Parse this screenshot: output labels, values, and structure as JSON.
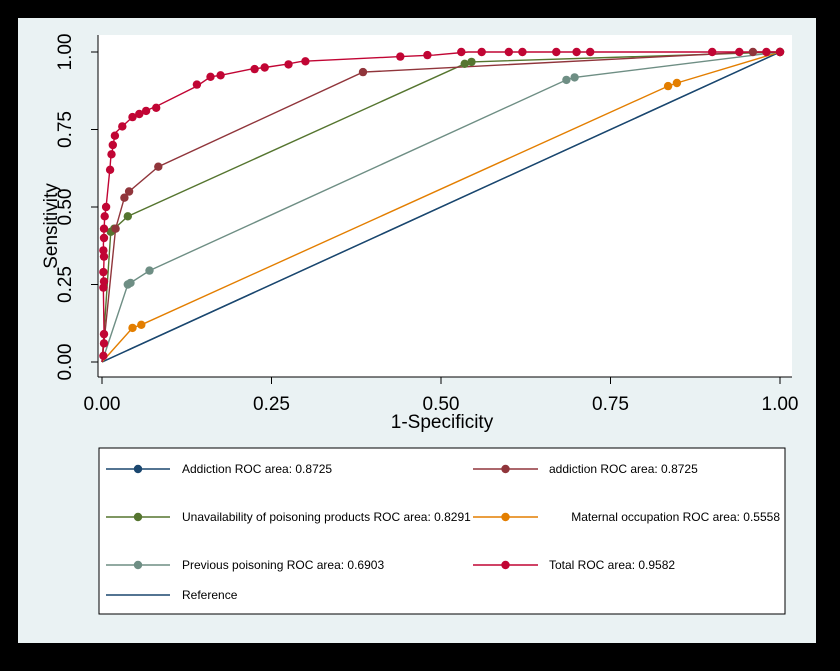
{
  "chart_data": {
    "type": "line",
    "xlabel": "1-Specificity",
    "ylabel": "Sensitivity",
    "xlim": [
      0,
      1
    ],
    "ylim": [
      0,
      1
    ],
    "xticks": [
      "0.00",
      "0.25",
      "0.50",
      "0.75",
      "1.00"
    ],
    "yticks": [
      "0.00",
      "0.25",
      "0.50",
      "0.75",
      "1.00"
    ],
    "grid": false,
    "legend_position": "bottom",
    "series": [
      {
        "name": "Addiction ROC area: 0.8725",
        "color": "#1a476f",
        "points": [
          [
            0,
            0
          ],
          [
            1,
            1
          ]
        ],
        "markers": false
      },
      {
        "name": "addiction ROC area: 0.8725",
        "color": "#90353b",
        "points": [
          [
            0,
            0
          ],
          [
            0.02,
            0.43
          ],
          [
            0.033,
            0.53
          ],
          [
            0.04,
            0.55
          ],
          [
            0.083,
            0.63
          ],
          [
            0.385,
            0.935
          ],
          [
            0.96,
            1.0
          ],
          [
            1,
            1
          ]
        ],
        "markers": true
      },
      {
        "name": "Unavailability of poisoning products ROC area: 0.8291",
        "color": "#55752f",
        "points": [
          [
            0,
            0
          ],
          [
            0.013,
            0.42
          ],
          [
            0.018,
            0.43
          ],
          [
            0.038,
            0.47
          ],
          [
            0.535,
            0.962
          ],
          [
            0.545,
            0.968
          ],
          [
            1,
            1
          ]
        ],
        "markers": true
      },
      {
        "name": "Maternal occupation ROC area: 0.5558",
        "color": "#e37e00",
        "points": [
          [
            0,
            0
          ],
          [
            0.045,
            0.11
          ],
          [
            0.058,
            0.12
          ],
          [
            0.835,
            0.89
          ],
          [
            0.848,
            0.9
          ],
          [
            1,
            1
          ]
        ],
        "markers": true
      },
      {
        "name": "Previous poisoning ROC area: 0.6903",
        "color": "#6e8e84",
        "points": [
          [
            0,
            0
          ],
          [
            0.038,
            0.25
          ],
          [
            0.042,
            0.255
          ],
          [
            0.07,
            0.295
          ],
          [
            0.685,
            0.91
          ],
          [
            0.697,
            0.918
          ],
          [
            1,
            1
          ]
        ],
        "markers": true
      },
      {
        "name": "Total ROC area: 0.9582",
        "color": "#c10534",
        "points": [
          [
            0,
            0
          ],
          [
            0.002,
            0.05
          ],
          [
            0.003,
            0.1
          ],
          [
            0.002,
            0.23
          ],
          [
            0.002,
            0.27
          ],
          [
            0.003,
            0.33
          ],
          [
            0.002,
            0.38
          ],
          [
            0.003,
            0.42
          ],
          [
            0.004,
            0.47
          ],
          [
            0.006,
            0.5
          ],
          [
            0.012,
            0.63
          ],
          [
            0.013,
            0.66
          ],
          [
            0.015,
            0.68
          ],
          [
            0.018,
            0.72
          ],
          [
            0.02,
            0.74
          ],
          [
            0.03,
            0.76
          ],
          [
            0.045,
            0.79
          ],
          [
            0.06,
            0.8
          ],
          [
            0.065,
            0.81
          ],
          [
            0.075,
            0.82
          ],
          [
            0.085,
            0.83
          ],
          [
            0.14,
            0.89
          ],
          [
            0.16,
            0.92
          ],
          [
            0.175,
            0.925
          ],
          [
            0.22,
            0.945
          ],
          [
            0.24,
            0.95
          ],
          [
            0.27,
            0.96
          ],
          [
            0.295,
            0.97
          ],
          [
            0.44,
            0.985
          ],
          [
            0.49,
            0.99
          ],
          [
            0.54,
            1.0
          ],
          [
            0.6,
            1.0
          ],
          [
            0.65,
            1.0
          ],
          [
            0.7,
            1.0
          ],
          [
            0.73,
            1.0
          ],
          [
            0.88,
            1.0
          ],
          [
            0.92,
            1.0
          ],
          [
            0.98,
            1.0
          ],
          [
            1,
            1
          ]
        ],
        "dots": [
          [
            0.002,
            0.02
          ],
          [
            0.003,
            0.06
          ],
          [
            0.003,
            0.09
          ],
          [
            0.002,
            0.24
          ],
          [
            0.003,
            0.26
          ],
          [
            0.002,
            0.29
          ],
          [
            0.003,
            0.34
          ],
          [
            0.002,
            0.36
          ],
          [
            0.003,
            0.4
          ],
          [
            0.003,
            0.43
          ],
          [
            0.004,
            0.47
          ],
          [
            0.006,
            0.5
          ],
          [
            0.012,
            0.62
          ],
          [
            0.014,
            0.67
          ],
          [
            0.016,
            0.7
          ],
          [
            0.019,
            0.73
          ],
          [
            0.03,
            0.76
          ],
          [
            0.045,
            0.79
          ],
          [
            0.055,
            0.8
          ],
          [
            0.065,
            0.81
          ],
          [
            0.08,
            0.82
          ],
          [
            0.14,
            0.895
          ],
          [
            0.16,
            0.92
          ],
          [
            0.175,
            0.925
          ],
          [
            0.225,
            0.945
          ],
          [
            0.24,
            0.95
          ],
          [
            0.275,
            0.96
          ],
          [
            0.3,
            0.97
          ],
          [
            0.44,
            0.985
          ],
          [
            0.48,
            0.99
          ],
          [
            0.53,
            1.0
          ],
          [
            0.56,
            1.0
          ],
          [
            0.6,
            1.0
          ],
          [
            0.62,
            1.0
          ],
          [
            0.67,
            1.0
          ],
          [
            0.7,
            1.0
          ],
          [
            0.72,
            1.0
          ],
          [
            0.9,
            1.0
          ],
          [
            0.94,
            1.0
          ],
          [
            0.98,
            1.0
          ],
          [
            1,
            1
          ]
        ],
        "markers": true
      },
      {
        "name": "Reference",
        "color": "#1a476f",
        "points": [
          [
            0,
            0
          ],
          [
            1,
            1
          ]
        ],
        "markers": false
      }
    ]
  }
}
